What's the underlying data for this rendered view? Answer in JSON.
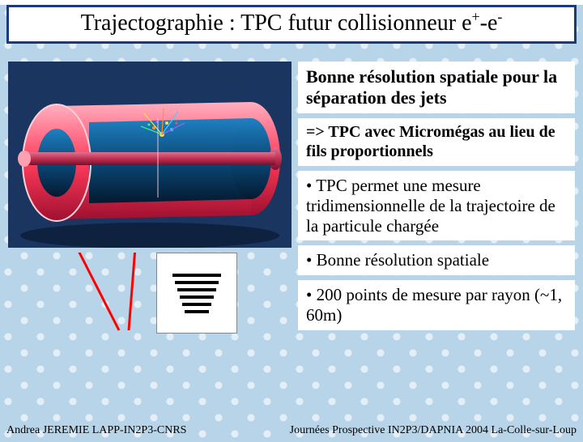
{
  "title": {
    "prefix": "Trajectographie : TPC futur collisionneur e",
    "sup1": "+",
    "mid": "-e",
    "sup2": "-"
  },
  "detector": {
    "bg_color": "#1a355f",
    "outer_color": "#ff3b5a",
    "inner_color": "#0a4a7a",
    "beam_color": "#c03050",
    "floor_color": "#0a1a30",
    "spark_colors": [
      "#ffe040",
      "#ff9030",
      "#40d0ff"
    ]
  },
  "pointer_lines": {
    "color": "#ff0000",
    "stroke_width": 3
  },
  "bars_icon": {
    "bar_count": 6,
    "bar_color": "#000000",
    "max_w": 60,
    "min_w": 30
  },
  "text_boxes": [
    {
      "text": "Bonne résolution spatiale pour la séparation des jets",
      "style": "bold"
    },
    {
      "text": "=> TPC avec Micromégas au lieu de fils proportionnels",
      "style": "mid-bold"
    },
    {
      "text": "• TPC permet une mesure tridimensionnelle de la trajectoire de la particule chargée",
      "style": ""
    },
    {
      "text": "• Bonne résolution spatiale",
      "style": ""
    },
    {
      "text": "• 200 points de mesure par rayon (~1, 60m)",
      "style": ""
    }
  ],
  "footer": {
    "left": "Andrea JEREMIE LAPP-IN2P3-CNRS",
    "right": "Journées Prospective IN2P3/DAPNIA 2004 La-Colle-sur-Loup"
  },
  "styles": {
    "title_border": "#1a3a7a",
    "title_font_size": 28,
    "body_font_size": 21,
    "bg_color": "#b8d4e8"
  }
}
